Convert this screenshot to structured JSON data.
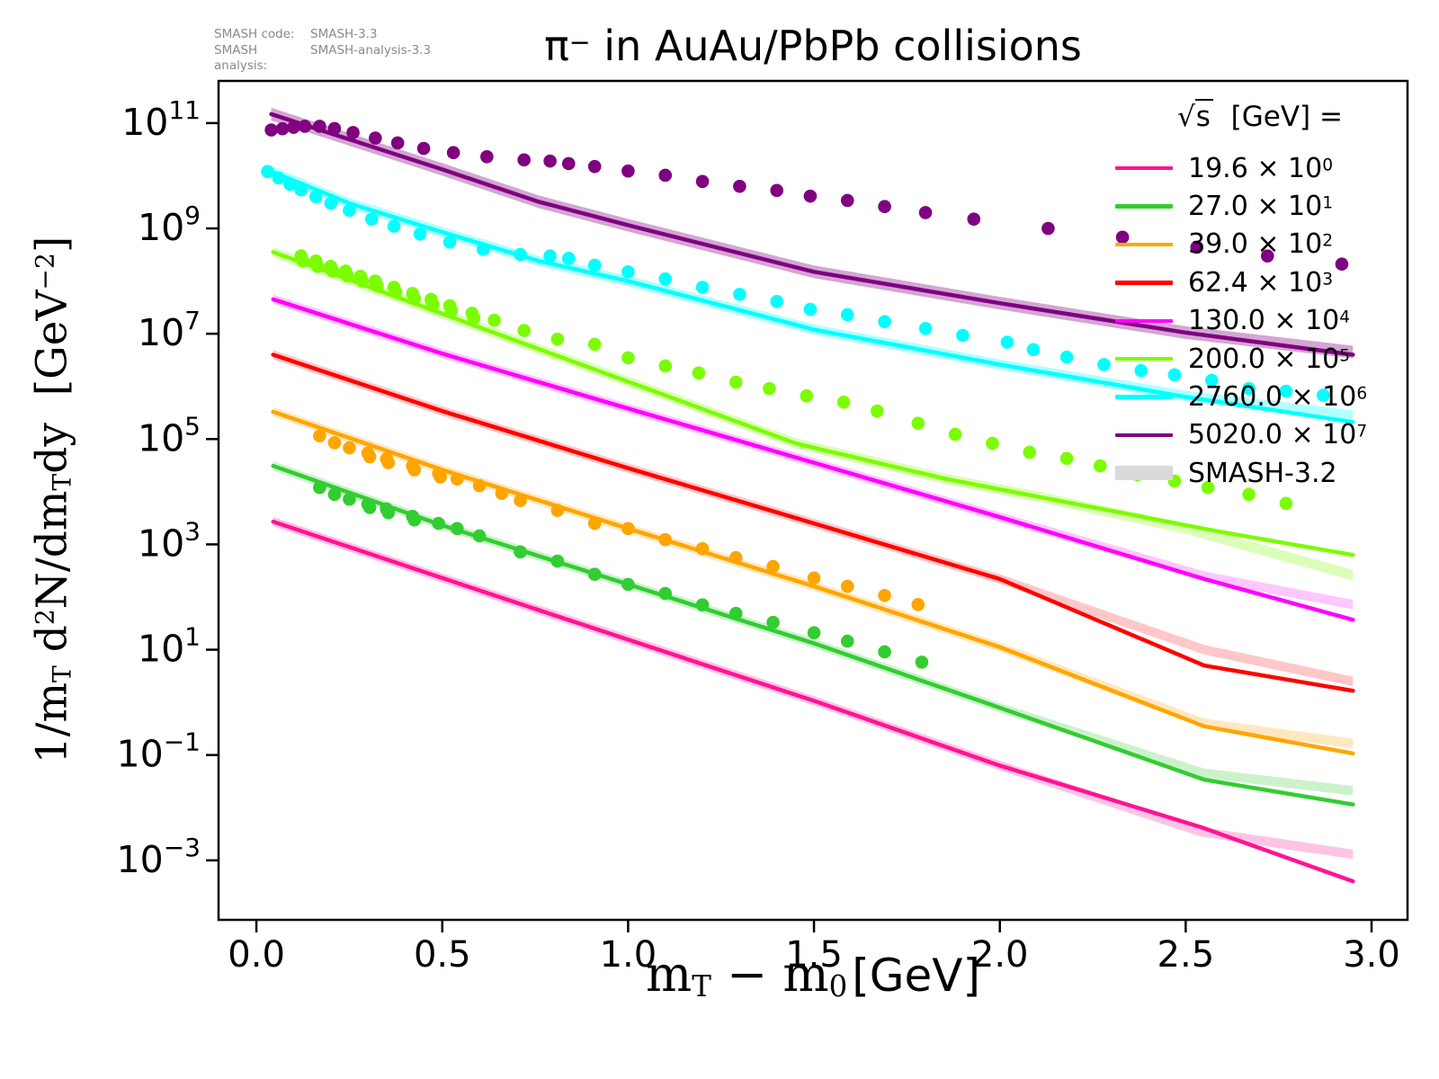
{
  "title_html": "π<sup>−</sup> in AuAu/PbPb collisions",
  "annotation": {
    "code_key": "SMASH code:",
    "code_value": "SMASH-3.3",
    "analysis_key": "SMASH analysis:",
    "analysis_value": "SMASH-analysis-3.3"
  },
  "ylabel_html": "1/m<sub>T</sub> d<sup>2</sup>N/dm<sub>T</sub>dy&nbsp; [GeV<sup>−2</sup>]",
  "xlabel_math_html": "m<sub>T</sub> − m<sub>0</sub>",
  "xlabel_unit_html": "[GeV]",
  "legend": {
    "title_sqrt": "√",
    "title_s": "s",
    "title_rest": "  [GeV] =",
    "smash32_label": "SMASH-3.2",
    "smash32_color": "#d9d9d9"
  },
  "chart_data": {
    "type": "line+scatter",
    "title": "pi- in AuAu/PbPb collisions",
    "xlabel": "m_T - m_0 [GeV]",
    "ylabel": "1/m_T d2N/dm_T dy [GeV^-2]",
    "x_scale": "linear",
    "y_scale": "log",
    "xlim": [
      -0.1,
      3.1
    ],
    "ylim_log10": [
      -4.13,
      11.8
    ],
    "x_ticks": [
      0.0,
      0.5,
      1.0,
      1.5,
      2.0,
      2.5,
      3.0
    ],
    "y_tick_exponents": [
      11,
      9,
      7,
      5,
      3,
      1,
      -1,
      -3
    ],
    "grid": false,
    "legend_position": "upper right",
    "legend_note": "solid line = SMASH-3.3, shaded band = SMASH-3.2, dots = experimental data",
    "series": [
      {
        "id": "19-6",
        "label_value": "19.6",
        "label_exp": "0",
        "color": "#ff1493",
        "band_halfwidth_log10": 0.09,
        "band_opacity": 0.25,
        "line": {
          "x": [
            0.045,
            0.5,
            1.0,
            1.5,
            2.0,
            2.54,
            2.95
          ],
          "y": [
            2700.0,
            230.0,
            15.5,
            1.07,
            0.063,
            0.0043,
            0.0004
          ]
        },
        "band": {
          "x": [
            0.045,
            0.5,
            1.0,
            1.5,
            2.0,
            2.54,
            2.95
          ],
          "y": [
            2700.0,
            230.0,
            15.5,
            1.07,
            0.063,
            0.0035,
            0.0013
          ]
        },
        "dots": null
      },
      {
        "id": "27-0",
        "label_value": "27.0",
        "label_exp": "1",
        "color": "#32cd32",
        "band_halfwidth_log10": 0.09,
        "band_opacity": 0.25,
        "line": {
          "x": [
            0.045,
            0.5,
            1.0,
            1.5,
            2.0,
            2.55,
            2.95
          ],
          "y": [
            31000.0,
            2300.0,
            174.0,
            13.2,
            0.79,
            0.034,
            0.0115
          ]
        },
        "band": {
          "x": [
            0.045,
            0.5,
            1.0,
            1.5,
            2.0,
            2.55,
            2.95
          ],
          "y": [
            31000.0,
            2300.0,
            174.0,
            13.2,
            0.79,
            0.045,
            0.021
          ]
        },
        "dots": {
          "x": [
            0.17,
            0.21,
            0.25,
            0.3,
            0.305,
            0.35,
            0.355,
            0.42,
            0.425,
            0.49,
            0.54,
            0.6,
            0.71,
            0.81,
            0.91,
            1.0,
            1.1,
            1.2,
            1.29,
            1.39,
            1.5,
            1.59,
            1.69,
            1.79
          ],
          "y": [
            12000.0,
            8900.0,
            7200.0,
            5750.0,
            5000.0,
            4700.0,
            4000.0,
            3400.0,
            2900.0,
            2500.0,
            2000.0,
            1450.0,
            720.0,
            480.0,
            270.0,
            174.0,
            117.0,
            71,
            49,
            33,
            21,
            14.5,
            9.1,
            5.8
          ]
        }
      },
      {
        "id": "39-0",
        "label_value": "39.0",
        "label_exp": "2",
        "color": "#ffa500",
        "band_halfwidth_log10": 0.09,
        "band_opacity": 0.25,
        "line": {
          "x": [
            0.045,
            0.5,
            1.0,
            1.5,
            2.0,
            2.55,
            2.95
          ],
          "y": [
            330000.0,
            26000.0,
            2000.0,
            160.0,
            11.2,
            0.35,
            0.107
          ]
        },
        "band": {
          "x": [
            0.045,
            0.5,
            1.0,
            1.5,
            2.0,
            2.55,
            2.95
          ],
          "y": [
            330000.0,
            26000.0,
            2000.0,
            160.0,
            11.2,
            0.4,
            0.166
          ]
        },
        "dots": {
          "x": [
            0.17,
            0.21,
            0.25,
            0.3,
            0.305,
            0.35,
            0.355,
            0.42,
            0.425,
            0.49,
            0.495,
            0.54,
            0.6,
            0.66,
            0.71,
            0.81,
            0.91,
            1.0,
            1.1,
            1.2,
            1.29,
            1.39,
            1.5,
            1.59,
            1.69,
            1.78
          ],
          "y": [
            115000.0,
            85000.0,
            68000.0,
            54000.0,
            46000.0,
            42000.0,
            35500.0,
            31000.0,
            26000.0,
            22000.0,
            19000.0,
            17400.0,
            13000.0,
            9300.0,
            6800.0,
            4400.0,
            2500.0,
            2000.0,
            1230.0,
            830.0,
            560.0,
            380.0,
            230.0,
            160.0,
            107.0,
            72
          ]
        }
      },
      {
        "id": "62-4",
        "label_value": "62.4",
        "label_exp": "3",
        "color": "#ff0000",
        "band_halfwidth_log10": 0.09,
        "band_opacity": 0.22,
        "line": {
          "x": [
            0.045,
            0.5,
            1.0,
            1.5,
            2.0,
            2.55,
            2.95
          ],
          "y": [
            4000000.0,
            340000.0,
            28000.0,
            2500.0,
            220.0,
            5.0,
            1.66
          ]
        },
        "band": {
          "x": [
            0.045,
            0.5,
            1.0,
            1.5,
            2.0,
            2.55,
            2.95
          ],
          "y": [
            4000000.0,
            340000.0,
            28000.0,
            2500.0,
            220.0,
            10.0,
            2.5
          ]
        },
        "dots": null
      },
      {
        "id": "130-0",
        "label_value": "130.0",
        "label_exp": "4",
        "color": "#ff00ff",
        "band_halfwidth_log10": 0.09,
        "band_opacity": 0.22,
        "line": {
          "x": [
            0.045,
            0.5,
            1.0,
            1.5,
            2.0,
            2.55,
            2.95
          ],
          "y": [
            45000000.0,
            4200000.0,
            380000.0,
            35500.0,
            3300.0,
            220.0,
            37
          ]
        },
        "band": {
          "x": [
            0.045,
            0.5,
            1.0,
            1.5,
            2.0,
            2.55,
            2.95
          ],
          "y": [
            45000000.0,
            4200000.0,
            380000.0,
            35500.0,
            3300.0,
            250.0,
            72
          ]
        },
        "dots": null
      },
      {
        "id": "200-0",
        "label_value": "200.0",
        "label_exp": "5",
        "color": "#7cfc00",
        "band_halfwidth_log10": 0.1,
        "band_opacity": 0.28,
        "line": {
          "x": [
            0.045,
            0.3,
            0.5,
            0.76,
            1.0,
            1.45,
            1.85,
            2.1,
            2.58,
            2.95
          ],
          "y": [
            355000000.0,
            79000000.0,
            24000000.0,
            5100000.0,
            1230000.0,
            83000.0,
            17800.0,
            8100.0,
            1800.0,
            630.0
          ]
        },
        "band": {
          "x": [
            0.045,
            0.3,
            0.5,
            0.76,
            1.0,
            1.45,
            1.85,
            2.1,
            2.5,
            2.95
          ],
          "y": [
            355000000.0,
            79000000.0,
            24000000.0,
            5100000.0,
            1230000.0,
            83000.0,
            17800.0,
            8100.0,
            2000.0,
            260.0
          ]
        },
        "dots": {
          "x": [
            0.12,
            0.125,
            0.16,
            0.165,
            0.2,
            0.205,
            0.24,
            0.245,
            0.28,
            0.285,
            0.32,
            0.325,
            0.37,
            0.375,
            0.42,
            0.425,
            0.47,
            0.475,
            0.52,
            0.525,
            0.58,
            0.585,
            0.64,
            0.72,
            0.81,
            0.91,
            1.0,
            1.1,
            1.19,
            1.29,
            1.38,
            1.48,
            1.58,
            1.67,
            1.78,
            1.88,
            1.98,
            2.08,
            2.18,
            2.27,
            2.37,
            2.47,
            2.56,
            2.67,
            2.77
          ],
          "y": [
            300000000.0,
            240000000.0,
            240000000.0,
            190000000.0,
            190000000.0,
            155000000.0,
            155000000.0,
            126000000.0,
            123000000.0,
            100000000.0,
            100000000.0,
            81000000.0,
            76000000.0,
            62000000.0,
            58000000.0,
            47000000.0,
            45000000.0,
            36000000.0,
            34000000.0,
            27500000.0,
            24500000.0,
            20000000.0,
            18000000.0,
            11500000.0,
            7900000.0,
            6300000.0,
            3500000.0,
            2450000.0,
            1800000.0,
            1200000.0,
            910000.0,
            660000.0,
            500000.0,
            340000.0,
            200000.0,
            123000.0,
            83000.0,
            56000.0,
            43000.0,
            31000.0,
            21000.0,
            16000.0,
            12000.0,
            8900.0,
            6000.0
          ]
        }
      },
      {
        "id": "2760-0",
        "label_value": "2760.0",
        "label_exp": "6",
        "color": "#00ffff",
        "band_halfwidth_log10": 0.1,
        "band_opacity": 0.3,
        "line": {
          "x": [
            0.03,
            0.25,
            0.5,
            0.76,
            1.0,
            1.5,
            2.0,
            2.5,
            2.95
          ],
          "y": [
            13000000000.0,
            3000000000.0,
            850000000.0,
            240000000.0,
            100000000.0,
            12000000.0,
            2600000.0,
            630000.0,
            210000.0
          ]
        },
        "band": {
          "x": [
            0.03,
            0.25,
            0.5,
            0.76,
            1.0,
            1.5,
            2.0,
            2.5,
            2.95
          ],
          "y": [
            13000000000.0,
            3000000000.0,
            850000000.0,
            240000000.0,
            100000000.0,
            12000000.0,
            2600000.0,
            660000.0,
            280000.0
          ]
        },
        "dots": {
          "x": [
            0.03,
            0.06,
            0.09,
            0.12,
            0.16,
            0.2,
            0.25,
            0.31,
            0.37,
            0.44,
            0.52,
            0.61,
            0.71,
            0.79,
            0.84,
            0.91,
            1.0,
            1.1,
            1.2,
            1.3,
            1.4,
            1.49,
            1.59,
            1.69,
            1.8,
            1.9,
            2.02,
            2.09,
            2.18,
            2.28,
            2.38,
            2.47,
            2.57,
            2.67,
            2.77,
            2.87
          ],
          "y": [
            12000000000.0,
            9100000000.0,
            6900000000.0,
            5400000000.0,
            4000000000.0,
            3000000000.0,
            2200000000.0,
            1500000000.0,
            1100000000.0,
            780000000.0,
            550000000.0,
            400000000.0,
            320000000.0,
            300000000.0,
            270000000.0,
            200000000.0,
            150000000.0,
            110000000.0,
            76000000.0,
            56000000.0,
            41000000.0,
            29000000.0,
            23000000.0,
            17000000.0,
            12600000.0,
            9300000.0,
            6900000.0,
            5000000.0,
            3600000.0,
            2600000.0,
            2000000.0,
            1660000.0,
            1300000.0,
            910000.0,
            810000.0,
            680000.0
          ]
        }
      },
      {
        "id": "5020-0",
        "label_value": "5020.0",
        "label_exp": "7",
        "color": "#800080",
        "band_halfwidth_log10": 0.12,
        "band_opacity": 0.35,
        "line": {
          "x": [
            0.04,
            0.25,
            0.5,
            0.76,
            1.0,
            1.5,
            2.0,
            2.5,
            2.95
          ],
          "y": [
            148000000000.0,
            49000000000.0,
            13200000000.0,
            3200000000.0,
            1150000000.0,
            150000000.0,
            38000000.0,
            10500000.0,
            4000000.0
          ]
        },
        "band": {
          "x": [
            0.04,
            0.25,
            0.5,
            0.76,
            1.0,
            1.5,
            2.0,
            2.5,
            2.95
          ],
          "y": [
            148000000000.0,
            49000000000.0,
            13200000000.0,
            3200000000.0,
            1150000000.0,
            150000000.0,
            38000000.0,
            10500000.0,
            4500000.0
          ]
        },
        "dots": {
          "x": [
            0.04,
            0.07,
            0.1,
            0.13,
            0.17,
            0.21,
            0.26,
            0.32,
            0.38,
            0.45,
            0.53,
            0.62,
            0.72,
            0.79,
            0.84,
            0.91,
            1.0,
            1.1,
            1.2,
            1.3,
            1.4,
            1.49,
            1.59,
            1.69,
            1.8,
            1.93,
            2.13,
            2.33,
            2.53,
            2.72,
            2.92
          ],
          "y": [
            74000000000.0,
            78000000000.0,
            83000000000.0,
            87000000000.0,
            87000000000.0,
            79000000000.0,
            66000000000.0,
            52000000000.0,
            42000000000.0,
            33000000000.0,
            27500000000.0,
            23000000000.0,
            20000000000.0,
            19000000000.0,
            17000000000.0,
            15000000000.0,
            12300000000.0,
            10200000000.0,
            7800000000.0,
            6300000000.0,
            5250000000.0,
            4100000000.0,
            3400000000.0,
            2600000000.0,
            2000000000.0,
            1500000000.0,
            1000000000.0,
            680000000.0,
            440000000.0,
            300000000.0,
            210000000.0
          ]
        }
      }
    ]
  }
}
